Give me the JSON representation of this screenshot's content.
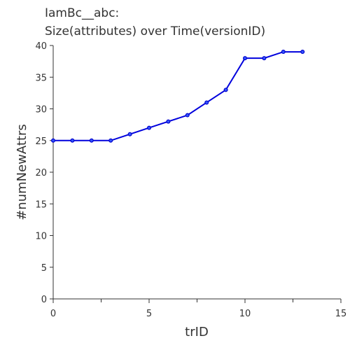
{
  "chart_data": {
    "type": "line",
    "title_lines": [
      "IamBc__abc:",
      "Size(attributes) over Time(versionID)"
    ],
    "xlabel": "trID",
    "ylabel": "#numNewAttrs",
    "xlim": [
      0,
      15
    ],
    "ylim": [
      0,
      40
    ],
    "x_ticks": [
      0,
      5,
      10,
      15
    ],
    "x_minor_ticks": [
      2.5,
      7.5,
      12.5
    ],
    "y_ticks": [
      0,
      5,
      10,
      15,
      20,
      25,
      30,
      35,
      40
    ],
    "grid": false,
    "legend": "none",
    "line_color": "#0000dd",
    "point_color": "#3355ff",
    "series": [
      {
        "x": [
          0,
          1,
          2,
          3,
          4,
          5,
          6,
          7,
          8,
          9,
          10,
          11,
          12,
          13
        ],
        "values": [
          25,
          25,
          25,
          25,
          26,
          27,
          28,
          29,
          31,
          33,
          38,
          38,
          39,
          39
        ]
      }
    ]
  }
}
